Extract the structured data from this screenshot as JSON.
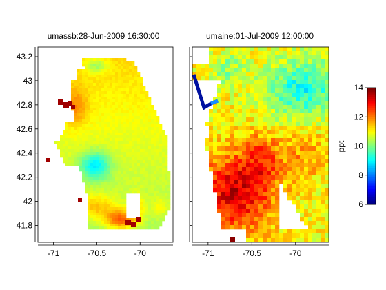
{
  "chart_data": [
    {
      "type": "heatmap",
      "title": "umassb:28-Jun-2009 16:30:00",
      "xlabel": "",
      "ylabel": "",
      "xlim": [
        -71.18,
        -69.62
      ],
      "ylim": [
        41.66,
        43.28
      ],
      "x_ticks": [
        "-71",
        "-70.5",
        "-70"
      ],
      "x_tick_values": [
        -71,
        -70.5,
        -70
      ],
      "y_ticks": [
        "41.8",
        "42",
        "42.2",
        "42.4",
        "42.6",
        "42.8",
        "43",
        "43.2"
      ],
      "y_tick_values": [
        41.8,
        42.0,
        42.2,
        42.4,
        42.6,
        42.8,
        43.0,
        43.2
      ],
      "units": "ppt",
      "typical_value_range": [
        9,
        13.8
      ]
    },
    {
      "type": "heatmap",
      "title": "umaine:01-Jul-2009 12:00:00",
      "xlabel": "",
      "ylabel": "",
      "xlim": [
        -71.18,
        -69.62
      ],
      "ylim": [
        41.66,
        43.28
      ],
      "x_ticks": [
        "-71",
        "-70.5",
        "-70"
      ],
      "x_tick_values": [
        -71,
        -70.5,
        -70
      ],
      "units": "ppt",
      "typical_value_range": [
        6,
        14
      ]
    }
  ],
  "colorbar": {
    "label": "ppt",
    "colormap": "jet",
    "min": 6,
    "max": 14,
    "ticks": [
      "6",
      "8",
      "10",
      "12",
      "14"
    ],
    "tick_values": [
      6,
      8,
      10,
      12,
      14
    ]
  }
}
